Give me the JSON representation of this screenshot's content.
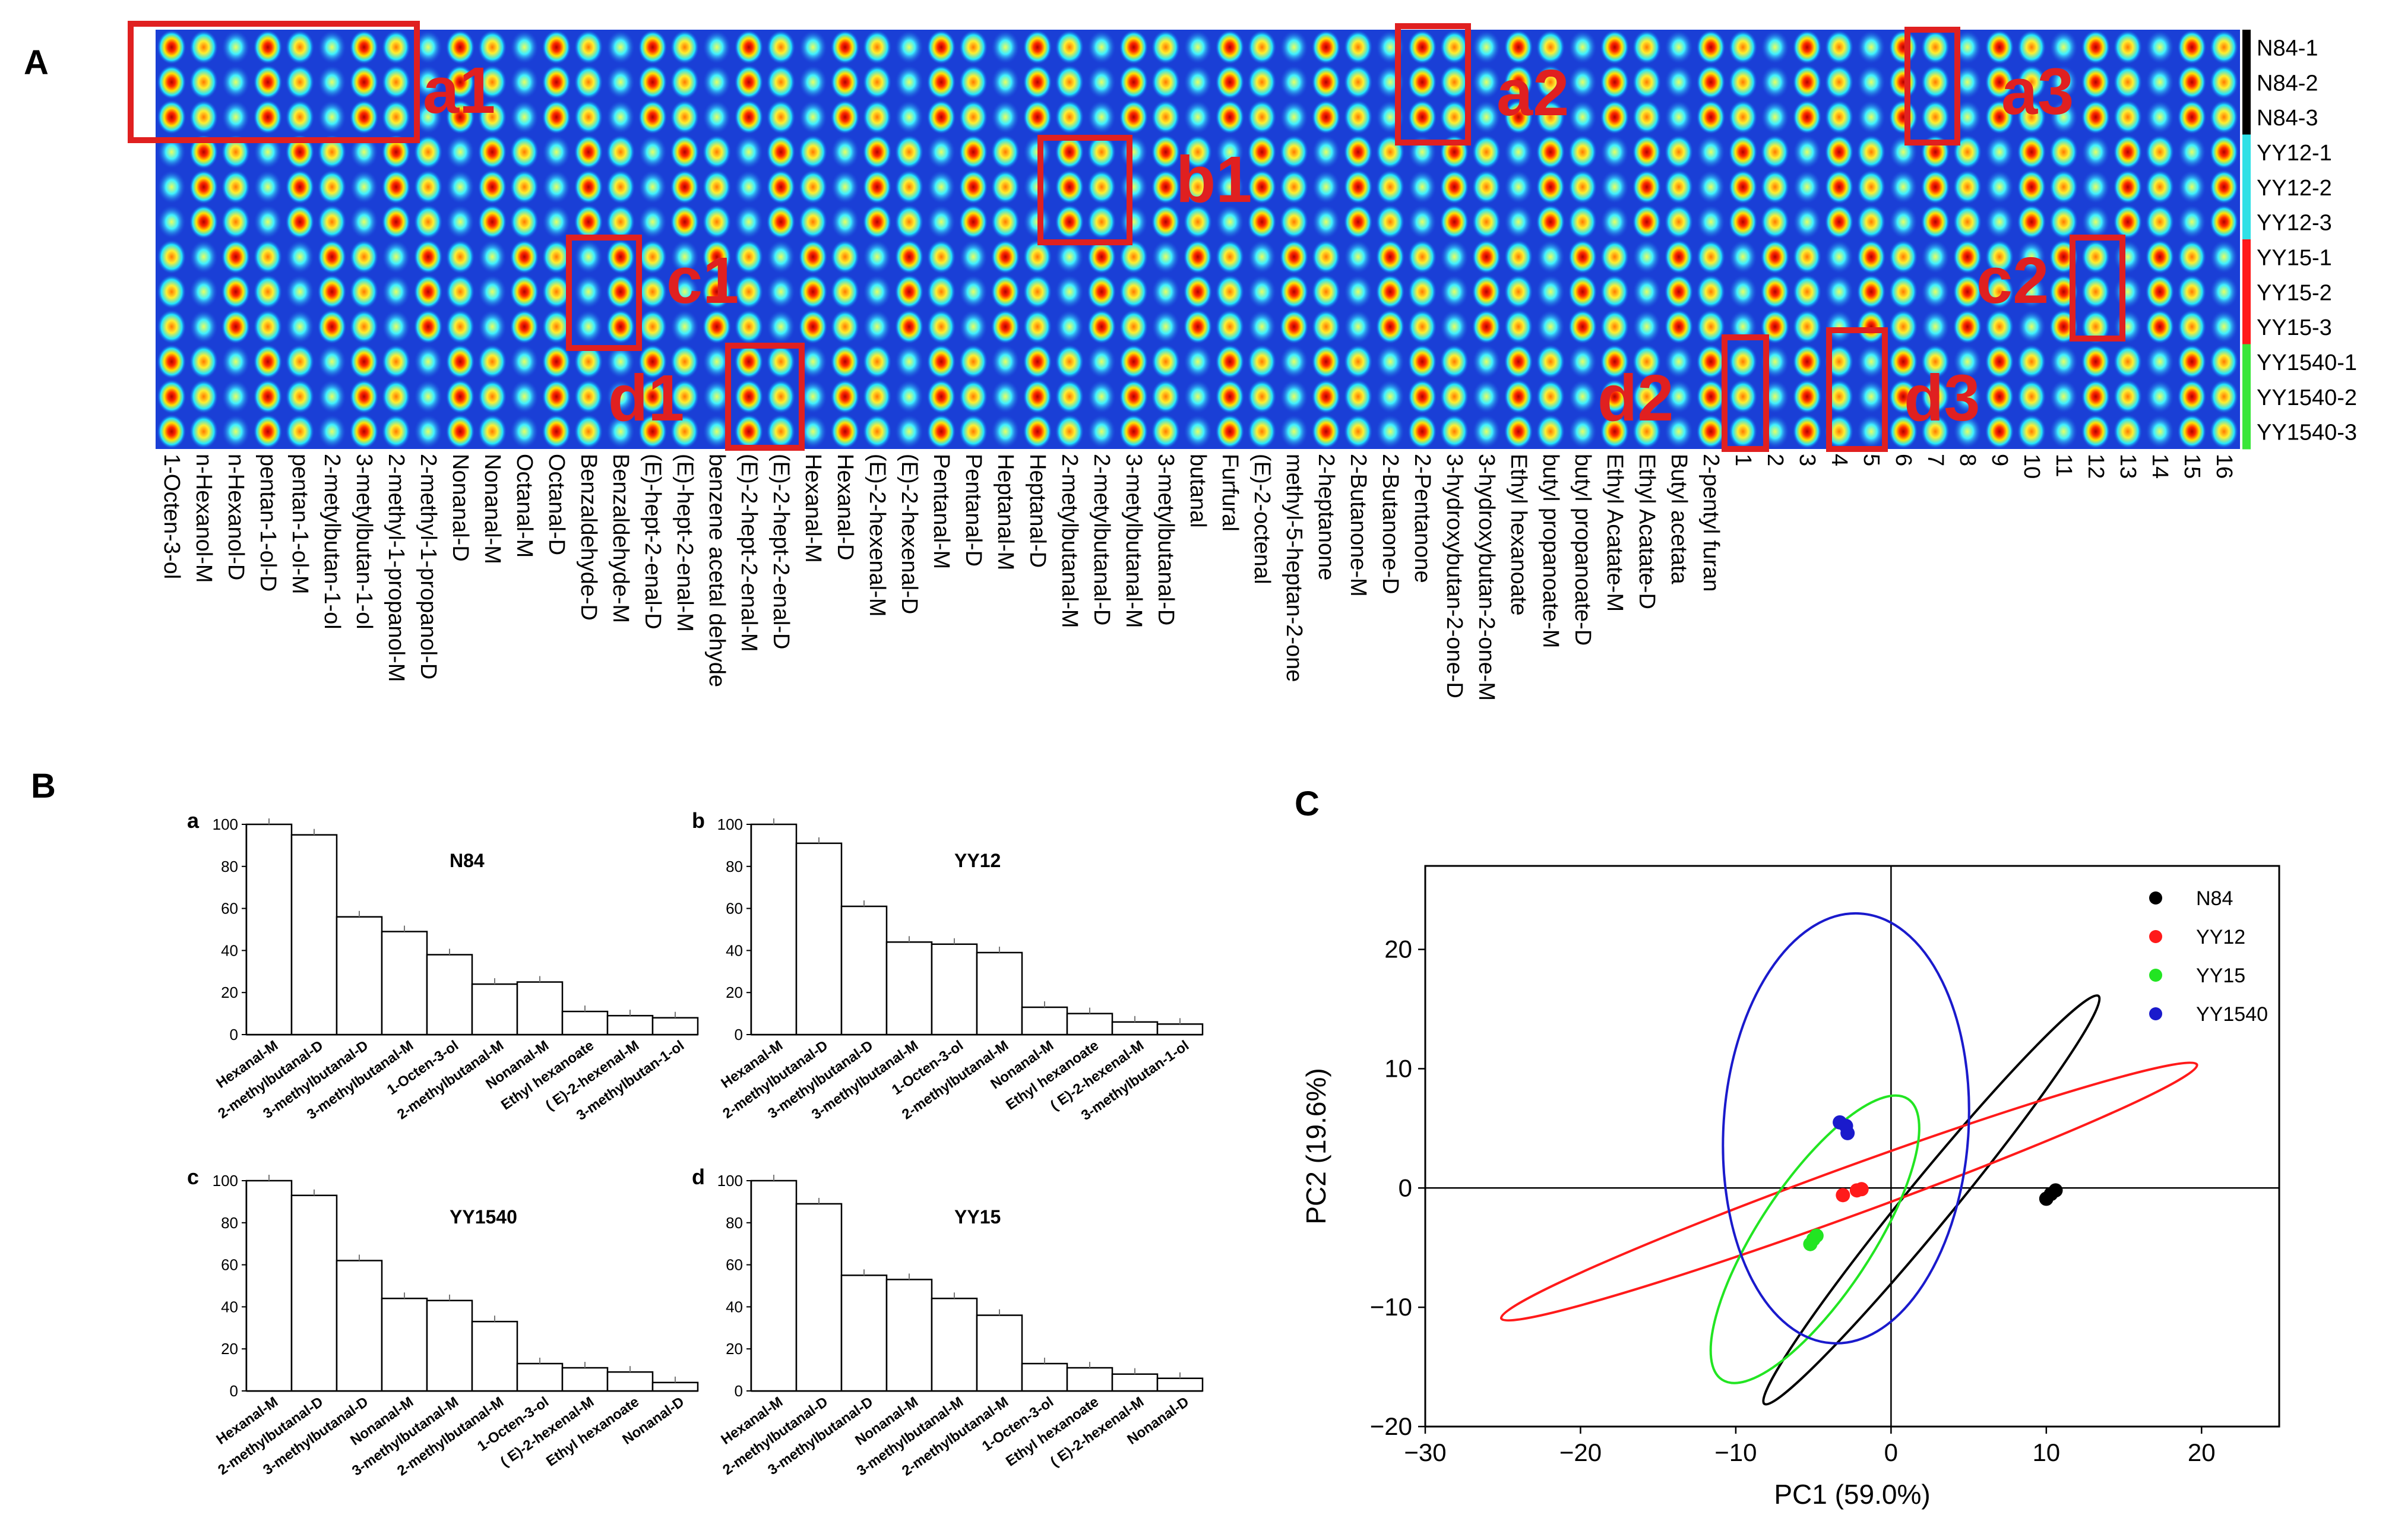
{
  "panels": {
    "A": "A",
    "B": "B",
    "C": "C"
  },
  "fingerprint": {
    "sample_labels": [
      "N84-1",
      "N84-2",
      "N84-3",
      "YY12-1",
      "YY12-2",
      "YY12-3",
      "YY15-1",
      "YY15-2",
      "YY15-3",
      "YY1540-1",
      "YY1540-2",
      "YY1540-3"
    ],
    "group_colors": {
      "N84": "#000000",
      "YY12": "#2fe0e6",
      "YY15": "#ff1a1a",
      "YY1540": "#39e63a"
    },
    "compounds": [
      "1-Octen-3-ol",
      "n-Hexanol-M",
      "n-Hexanol-D",
      "pentan-1-ol-D",
      "pentan-1-ol-M",
      "2-metylbutan-1-ol",
      "3-metylbutan-1-ol",
      "2-methyl-1-propanol-M",
      "2-methyl-1-propanol-D",
      "Nonanal-D",
      "Nonanal-M",
      "Octanal-M",
      "Octanal-D",
      "Benzaldehyde-D",
      "Benzaldehyde-M",
      "(E)-hept-2-enal-D",
      "(E)-hept-2-enal-M",
      "benzene acetal dehyde",
      "(E)-2-hept-2-enal-M",
      "(E)-2-hept-2-enal-D",
      "Hexanal-M",
      "Hexanal-D",
      "(E)-2-hexenal-M",
      "(E)-2-hexenal-D",
      "Pentanal-M",
      "Pentanal-D",
      "Heptanal-M",
      "Heptanal-D",
      "2-metylbutanal-M",
      "2-metylbutanal-D",
      "3-metylbutanal-M",
      "3-metylbutanal-D",
      "butanal",
      "Furfural",
      "(E)-2-octenal",
      "methyl-5-heptan-2-one",
      "2-heptanone",
      "2-Butanone-M",
      "2-Butanone-D",
      "2-Pentanone",
      "3-hydroxybutan-2-one-D",
      "3-hydroxybutan-2-one-M",
      "Ethyl hexanoate",
      "butyl propanoate-M",
      "butyl propanoate-D",
      "Ethyl Acatate-M",
      "Ethyl Acatate-D",
      "Butyl acetata",
      "2-pentyl furan",
      "1",
      "2",
      "3",
      "4",
      "5",
      "6",
      "7",
      "8",
      "9",
      "10",
      "11",
      "12",
      "13",
      "14",
      "15",
      "16"
    ],
    "box_labels": [
      "a1",
      "a2",
      "a3",
      "b1",
      "c1",
      "c2",
      "d1",
      "d2",
      "d3"
    ]
  },
  "bar_charts": [
    {
      "letter": "a",
      "title": "N84",
      "categories": [
        "Hexanal-M",
        "2-methylbutanal-D",
        "3-methylbutanal-D",
        "3-methylbutanal-M",
        "1-Octen-3-ol",
        "2-methylbutanal-M",
        "Nonanal-M",
        "Ethyl hexanoate",
        "( E)-2-hexenal-M",
        "3-methylbutan-1-ol"
      ],
      "values": [
        100,
        95,
        56,
        49,
        38,
        24,
        25,
        11,
        9,
        8
      ],
      "ylim": [
        0,
        100
      ],
      "yticks": [
        "0",
        "20",
        "40",
        "60",
        "80",
        "100"
      ]
    },
    {
      "letter": "b",
      "title": "YY12",
      "categories": [
        "Hexanal-M",
        "2-methylbutanal-D",
        "3-methylbutanal-D",
        "3-methylbutanal-M",
        "1-Octen-3-ol",
        "2-methylbutanal-M",
        "Nonanal-M",
        "Ethyl hexanoate",
        "( E)-2-hexenal-M",
        "3-methylbutan-1-ol"
      ],
      "values": [
        100,
        91,
        61,
        44,
        43,
        39,
        13,
        10,
        6,
        5
      ],
      "ylim": [
        0,
        100
      ],
      "yticks": [
        "0",
        "20",
        "40",
        "60",
        "80",
        "100"
      ]
    },
    {
      "letter": "c",
      "title": "YY1540",
      "categories": [
        "Hexanal-M",
        "2-methylbutanal-D",
        "3-methylbutanal-D",
        "Nonanal-M",
        "3-methylbutanal-M",
        "2-methylbutanal-M",
        "1-Octen-3-ol",
        "( E)-2-hexenal-M",
        "Ethyl hexanoate",
        "Nonanal-D"
      ],
      "values": [
        100,
        93,
        62,
        44,
        43,
        33,
        13,
        11,
        9,
        4
      ],
      "ylim": [
        0,
        100
      ],
      "yticks": [
        "0",
        "20",
        "40",
        "60",
        "80",
        "100"
      ]
    },
    {
      "letter": "d",
      "title": "YY15",
      "categories": [
        "Hexanal-M",
        "2-methylbutanal-D",
        "3-methylbutanal-D",
        "Nonanal-M",
        "3-methylbutanal-M",
        "2-methylbutanal-M",
        "1-Octen-3-ol",
        "Ethyl hexanoate",
        "( E)-2-hexenal-M",
        "Nonanal-D"
      ],
      "values": [
        100,
        89,
        55,
        53,
        44,
        36,
        13,
        11,
        8,
        6
      ],
      "ylim": [
        0,
        100
      ],
      "yticks": [
        "0",
        "20",
        "40",
        "60",
        "80",
        "100"
      ]
    }
  ],
  "chart_data": {
    "type": "scatter",
    "xlabel": "PC1 (59.0%)",
    "ylabel": "PC2 (19.6%)",
    "xlim": [
      -30,
      25
    ],
    "ylim": [
      -20,
      27
    ],
    "xticks": [
      "−30",
      "−20",
      "−10",
      "0",
      "10",
      "20"
    ],
    "yticks": [
      "−20",
      "−10",
      "0",
      "10",
      "20"
    ],
    "series": [
      {
        "name": "N84",
        "color": "#000000",
        "points": [
          [
            10.0,
            -0.9
          ],
          [
            10.3,
            -0.5
          ],
          [
            10.6,
            -0.2
          ]
        ],
        "ellipse": {
          "cx": 2.6,
          "cy": -1.0,
          "rx": 20.2,
          "ry": 1.6,
          "angle_deg": 57.8
        }
      },
      {
        "name": "YY12",
        "color": "#ff1a1a",
        "points": [
          [
            -3.1,
            -0.6
          ],
          [
            -2.2,
            -0.2
          ],
          [
            -1.9,
            -0.1
          ]
        ],
        "ellipse": {
          "cx": -2.7,
          "cy": -0.3,
          "rx": 24.8,
          "ry": 1.9,
          "angle_deg": 25.4
        }
      },
      {
        "name": "YY15",
        "color": "#22e522",
        "points": [
          [
            -5.2,
            -4.7
          ],
          [
            -5.0,
            -4.3
          ],
          [
            -4.8,
            -4.0
          ]
        ],
        "ellipse": {
          "cx": -4.9,
          "cy": -4.3,
          "rx": 13.2,
          "ry": 3.8,
          "angle_deg": 63.0
        }
      },
      {
        "name": "YY1540",
        "color": "#1a1acc",
        "points": [
          [
            -3.3,
            5.5
          ],
          [
            -2.9,
            5.2
          ],
          [
            -2.8,
            4.6
          ]
        ],
        "ellipse": {
          "cx": -2.9,
          "cy": 5.0,
          "rx": 7.9,
          "ry": 18.0,
          "angle_deg": -5.0
        }
      }
    ]
  }
}
